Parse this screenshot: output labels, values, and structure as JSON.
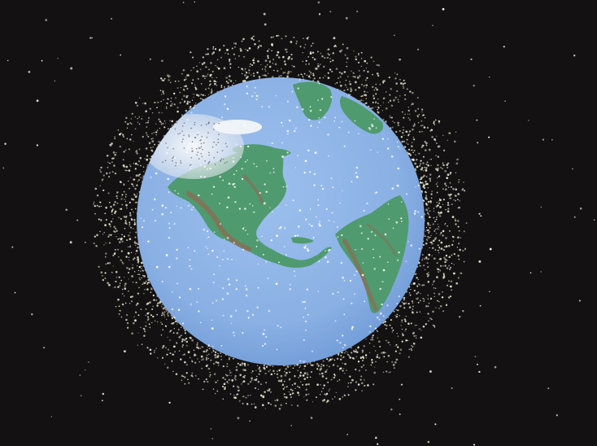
{
  "scene": {
    "subject": "earth",
    "colors": {
      "space": "#141113",
      "ocean": "#8fb4e6",
      "ocean_edge": "#6f9bd6",
      "land": "#4f9a6f",
      "land_relief": "#8e6a52",
      "ice": "#e9eef3",
      "debris": "#f0f2d8",
      "star": "#e9f2dc"
    },
    "icons": [
      "globe-icon",
      "debris-field",
      "star-field"
    ]
  }
}
